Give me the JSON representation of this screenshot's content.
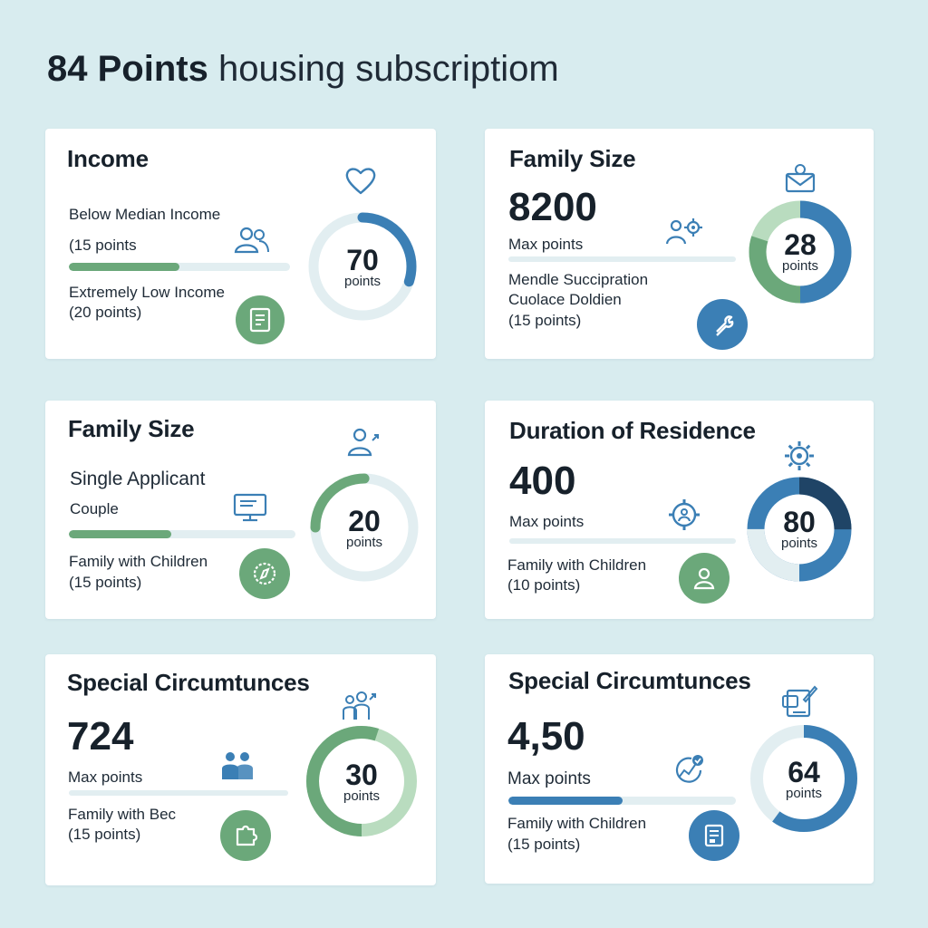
{
  "header": {
    "title_strong": "84 Points",
    "title_rest": "housing subscriptiom"
  },
  "colors": {
    "background": "#d8ecef",
    "green": "#6ba87a",
    "light_green": "#b9dcbf",
    "blue": "#3b7fb5",
    "dark_navy": "#1f4466",
    "track": "#e2eef1"
  },
  "cards": [
    {
      "title": "Income",
      "top_icon": "heart-icon",
      "lines": [
        "Below Median Income",
        "(15 points",
        "Extremely Low Income",
        "(20 points)"
      ],
      "inline_icon": "people-icon",
      "badge_icon": "document-icon",
      "bar_progress": 0.5,
      "donut": {
        "value": "70",
        "unit": "points",
        "progress": 0.3
      }
    },
    {
      "title": "Family Size",
      "big_number": "8200",
      "top_icon": "envelope-icon",
      "lines": [
        "Max points",
        "Mendle Succipration",
        "Cuolace Doldien",
        "(15 points)"
      ],
      "inline_icon": "person-gear-icon",
      "badge_icon": "tool-icon",
      "donut": {
        "value": "28",
        "unit": "points",
        "progress": 0.5
      }
    },
    {
      "title": "Family Size",
      "top_icon": "user-icon",
      "lines": [
        "Single Applicant",
        "Couple",
        "Family with Children",
        "(15 points)"
      ],
      "inline_icon": "monitor-icon",
      "badge_icon": "compass-icon",
      "bar_progress": 0.45,
      "donut": {
        "value": "20",
        "unit": "points",
        "progress": 0.25
      }
    },
    {
      "title": "Duration of Residence",
      "big_number": "400",
      "top_icon": "gear-icon",
      "lines": [
        "Max points",
        "Family with Children",
        "(10 points)"
      ],
      "inline_icon": "gear-person-icon",
      "badge_icon": "person-icon",
      "donut": {
        "value": "80",
        "unit": "points",
        "progress": 0.25
      }
    },
    {
      "title": "Special Circumtunces",
      "big_number": "724",
      "top_icon": "family-icon",
      "lines": [
        "Max points",
        "Family with Bec",
        "(15 points)"
      ],
      "inline_icon": "group-icon",
      "badge_icon": "puzzle-icon",
      "donut": {
        "value": "30",
        "unit": "points",
        "progress": 0.55
      }
    },
    {
      "title": "Special Circumtunces",
      "big_number": "4,50",
      "top_icon": "clipboard-pen-icon",
      "lines": [
        "Max points",
        "Family with Children",
        "(15 points)"
      ],
      "inline_icon": "check-chart-icon",
      "badge_icon": "form-icon",
      "bar_progress": 0.5,
      "donut": {
        "value": "64",
        "unit": "points",
        "progress": 0.6
      }
    }
  ]
}
